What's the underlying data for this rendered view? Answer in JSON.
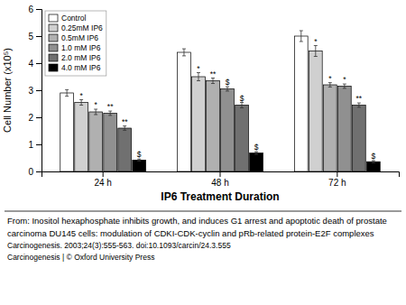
{
  "chart_data": {
    "type": "bar",
    "xlabel": "IP6 Treatment Duration",
    "ylabel": "Cell Number (x10⁵)",
    "categories": [
      "24 h",
      "48 h",
      "72 h"
    ],
    "series": [
      {
        "name": "Control",
        "color": "#ffffff",
        "values": [
          2.9,
          4.4,
          5.0
        ],
        "errors": [
          0.12,
          0.13,
          0.2
        ],
        "annotations": [
          null,
          null,
          null
        ]
      },
      {
        "name": "0.25mM IP6",
        "color": "#d0d0d0",
        "values": [
          2.55,
          3.5,
          4.45
        ],
        "errors": [
          0.1,
          0.15,
          0.2
        ],
        "annotations": [
          "*",
          "*",
          "*"
        ]
      },
      {
        "name": "0.5mM IP6",
        "color": "#b0b0b0",
        "values": [
          2.2,
          3.35,
          3.2
        ],
        "errors": [
          0.1,
          0.1,
          0.08
        ],
        "annotations": [
          "*",
          "**",
          "*"
        ]
      },
      {
        "name": "1.0 mM IP6",
        "color": "#909090",
        "values": [
          2.15,
          3.05,
          3.15
        ],
        "errors": [
          0.08,
          0.08,
          0.08
        ],
        "annotations": [
          "**",
          "$",
          "*"
        ]
      },
      {
        "name": "2.0 mM IP6",
        "color": "#707070",
        "values": [
          1.6,
          2.45,
          2.45
        ],
        "errors": [
          0.08,
          0.1,
          0.08
        ],
        "annotations": [
          "**",
          "$",
          "**"
        ]
      },
      {
        "name": "4.0 mM IP6",
        "color": "#000000",
        "values": [
          0.42,
          0.68,
          0.36
        ],
        "errors": [
          0.04,
          0.05,
          0.04
        ],
        "annotations": [
          "$",
          "$",
          "$"
        ]
      }
    ],
    "ylim": [
      0,
      6
    ],
    "yticks": [
      0,
      1,
      2,
      3,
      4,
      5,
      6
    ],
    "grid": false,
    "legend": "upper left",
    "caption": [
      "From: Inositol hexaphosphate inhibits growth, and induces G1 arrest and apoptotic death of prostate",
      "carcinoma DU145 cells: modulation of CDKI-CDK-cyclin and pRb-related protein-E2F complexes",
      "Carcinogenesis. 2003;24(3):555-563. doi:10.1093/carcin/24.3.555",
      "Carcinogenesis | © Oxford University Press"
    ]
  }
}
